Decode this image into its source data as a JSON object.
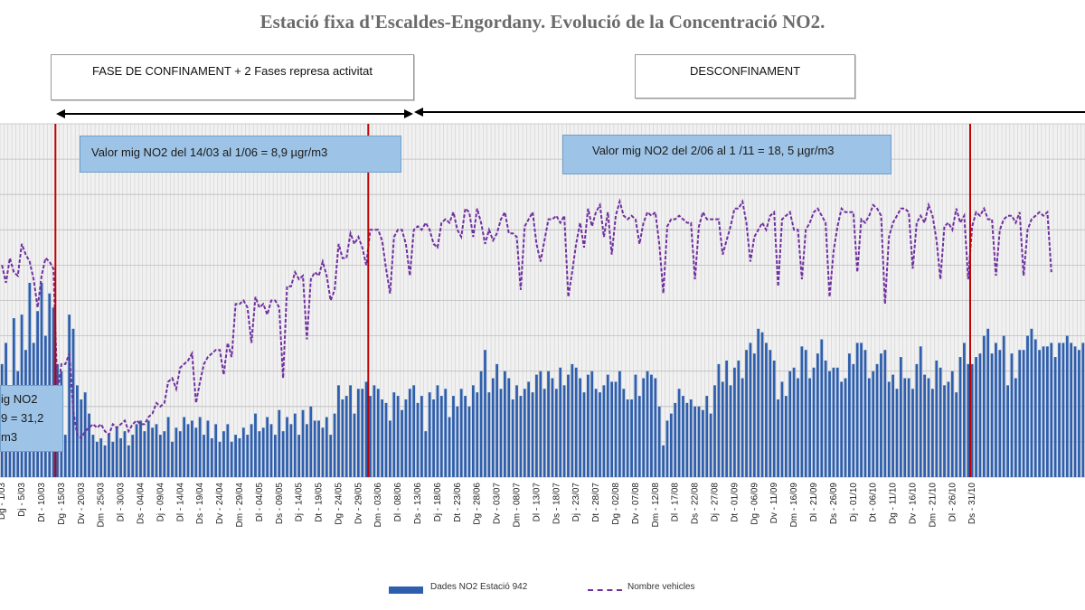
{
  "title": "Estació fixa d'Escaldes-Engordany. Evolució de la Concentració NO2.",
  "phases": [
    {
      "label": "FASE DE CONFINAMENT + 2 Fases represa activitat"
    },
    {
      "label": "DESCONFINAMENT"
    }
  ],
  "notes": {
    "confinement_mean": "Valor mig NO2 del 14/03 al 1/06 = 8,9 µgr/m3",
    "deconfinement_mean": "Valor mig NO2 del 2/06 al 1 /11 = 18, 5 µgr/m3",
    "partial_lines": [
      "ig NO2",
      "9 = 31,2",
      "m3"
    ]
  },
  "colors": {
    "bar": "#2e5fae",
    "line": "#7030a0",
    "marker": "#c00000",
    "note_box": "#9dc3e6",
    "grid": "#cfcfcf"
  },
  "chart_data": {
    "type": "bar",
    "title": "Estació fixa d'Escaldes-Engordany. Evolució de la Concentració NO2.",
    "xlabel": "",
    "ylabel": "",
    "grid": true,
    "legend_position": "bottom",
    "x_tick_labels": [
      "Dg - 1/03",
      "Dj - 5/03",
      "Dt - 10/03",
      "Dg - 15/03",
      "Dv - 20/03",
      "Dm - 25/03",
      "Dl - 30/03",
      "Ds - 04/04",
      "Dj - 09/04",
      "Dl - 14/04",
      "Ds - 19/04",
      "Dv - 24/04",
      "Dm - 29/04",
      "Dl - 04/05",
      "Ds - 09/05",
      "Dj - 14/05",
      "Dt - 19/05",
      "Dg - 24/05",
      "Dv - 29/05",
      "Dm - 03/06",
      "Dl - 08/06",
      "Ds - 13/06",
      "Dj - 18/06",
      "Dt - 23/06",
      "Dg - 28/06",
      "Dv - 03/07",
      "Dm - 08/07",
      "Dl - 13/07",
      "Ds - 18/07",
      "Dj - 23/07",
      "Dt - 28/07",
      "Dg - 02/08",
      "Dv - 07/08",
      "Dm - 12/08",
      "Dl - 17/08",
      "Ds - 22/08",
      "Dj - 27/08",
      "Dt - 01/09",
      "Dg - 06/09",
      "Dv - 11/09",
      "Dm - 16/09",
      "Dl - 21/09",
      "Ds - 26/09",
      "Dj - 01/10",
      "Dt - 06/10",
      "Dg - 11/10",
      "Dv - 16/10",
      "Dm - 21/10",
      "Dl - 26/10",
      "Ds - 31/10"
    ],
    "series": [
      {
        "name": "Dades NO2 Estació 942",
        "type": "bar",
        "values": [
          32,
          38,
          26,
          45,
          30,
          46,
          36,
          55,
          38,
          47,
          55,
          40,
          52,
          48,
          32,
          30,
          12,
          46,
          42,
          26,
          22,
          24,
          18,
          12,
          10,
          11,
          9,
          12,
          10,
          14,
          11,
          13,
          9,
          12,
          15,
          16,
          13,
          16,
          14,
          15,
          12,
          13,
          17,
          10,
          14,
          13,
          17,
          15,
          16,
          14,
          17,
          12,
          16,
          11,
          15,
          10,
          13,
          15,
          10,
          12,
          11,
          14,
          12,
          15,
          18,
          13,
          14,
          17,
          15,
          12,
          19,
          13,
          17,
          15,
          18,
          12,
          19,
          15,
          20,
          16,
          16,
          14,
          17,
          12,
          18,
          26,
          22,
          23,
          26,
          18,
          25,
          25,
          27,
          23,
          26,
          25,
          22,
          21,
          16,
          24,
          23,
          19,
          22,
          25,
          26,
          21,
          23,
          13,
          24,
          22,
          26,
          23,
          25,
          17,
          23,
          20,
          25,
          23,
          20,
          26,
          24,
          30,
          36,
          24,
          28,
          32,
          25,
          30,
          28,
          22,
          26,
          23,
          25,
          27,
          24,
          29,
          30,
          25,
          30,
          28,
          25,
          31,
          26,
          29,
          32,
          31,
          28,
          24,
          29,
          30,
          25,
          24,
          26,
          29,
          27,
          27,
          30,
          25,
          22,
          22,
          29,
          23,
          28,
          30,
          29,
          28,
          20,
          9,
          16,
          18,
          21,
          25,
          23,
          21,
          22,
          20,
          20,
          19,
          23,
          18,
          26,
          32,
          27,
          33,
          26,
          31,
          33,
          28,
          36,
          38,
          35,
          42,
          41,
          38,
          36,
          33,
          22,
          27,
          23,
          30,
          31,
          28,
          37,
          36,
          28,
          31,
          35,
          39,
          33,
          30,
          31,
          31,
          27,
          28,
          35,
          32,
          38,
          38,
          36,
          28,
          30,
          32,
          35,
          36,
          27,
          29,
          25,
          34,
          28,
          28,
          25,
          32,
          37,
          29,
          28,
          25,
          33,
          31,
          26,
          27,
          30,
          24,
          34,
          38,
          32,
          32,
          34,
          35,
          40,
          42,
          35,
          38,
          36,
          40,
          26,
          35,
          28,
          36,
          36,
          40,
          42,
          39,
          36,
          37,
          37,
          38,
          34,
          38,
          38,
          40,
          38,
          37,
          36,
          38
        ]
      },
      {
        "name": "Nombre vehicles",
        "type": "line",
        "values": [
          60,
          55,
          62,
          58,
          57,
          66,
          63,
          61,
          56,
          48,
          57,
          62,
          61,
          59,
          24,
          32,
          32,
          35,
          19,
          12,
          11,
          13,
          14,
          15,
          14,
          15,
          13,
          12,
          15,
          14,
          15,
          16,
          13,
          15,
          16,
          15,
          15,
          17,
          18,
          21,
          20,
          21,
          27,
          28,
          25,
          31,
          32,
          33,
          35,
          21,
          27,
          32,
          34,
          35,
          36,
          36,
          29,
          38,
          34,
          49,
          49,
          50,
          48,
          38,
          51,
          48,
          49,
          46,
          50,
          50,
          48,
          28,
          54,
          54,
          58,
          56,
          57,
          39,
          56,
          58,
          57,
          61,
          57,
          50,
          53,
          66,
          62,
          62,
          69,
          66,
          68,
          65,
          60,
          70,
          70,
          70,
          67,
          59,
          52,
          68,
          70,
          70,
          66,
          57,
          70,
          71,
          70,
          72,
          70,
          66,
          65,
          72,
          73,
          72,
          75,
          70,
          68,
          76,
          75,
          68,
          76,
          72,
          66,
          70,
          67,
          69,
          73,
          75,
          69,
          69,
          68,
          53,
          71,
          73,
          75,
          66,
          61,
          67,
          73,
          73,
          74,
          72,
          74,
          51,
          58,
          66,
          72,
          65,
          76,
          71,
          75,
          77,
          68,
          75,
          63,
          74,
          78,
          74,
          73,
          74,
          73,
          66,
          72,
          75,
          74,
          75,
          66,
          52,
          71,
          73,
          73,
          74,
          73,
          72,
          72,
          56,
          71,
          75,
          73,
          73,
          73,
          73,
          63,
          67,
          71,
          76,
          76,
          78,
          72,
          61,
          68,
          70,
          72,
          70,
          74,
          75,
          54,
          73,
          74,
          75,
          70,
          70,
          56,
          70,
          72,
          75,
          76,
          74,
          72,
          51,
          64,
          71,
          76,
          75,
          75,
          75,
          58,
          73,
          72,
          74,
          77,
          76,
          74,
          49,
          68,
          72,
          74,
          76,
          76,
          75,
          59,
          72,
          74,
          72,
          77,
          74,
          67,
          56,
          71,
          72,
          70,
          76,
          72,
          74,
          56,
          71,
          75,
          74,
          76,
          73,
          73,
          57,
          70,
          73,
          74,
          74,
          72,
          75,
          57,
          70,
          73,
          74,
          75,
          74,
          75,
          58
        ]
      }
    ]
  },
  "legend": [
    {
      "label": "Dades NO2 Estació 942"
    },
    {
      "label": "Nombre vehicles"
    }
  ]
}
